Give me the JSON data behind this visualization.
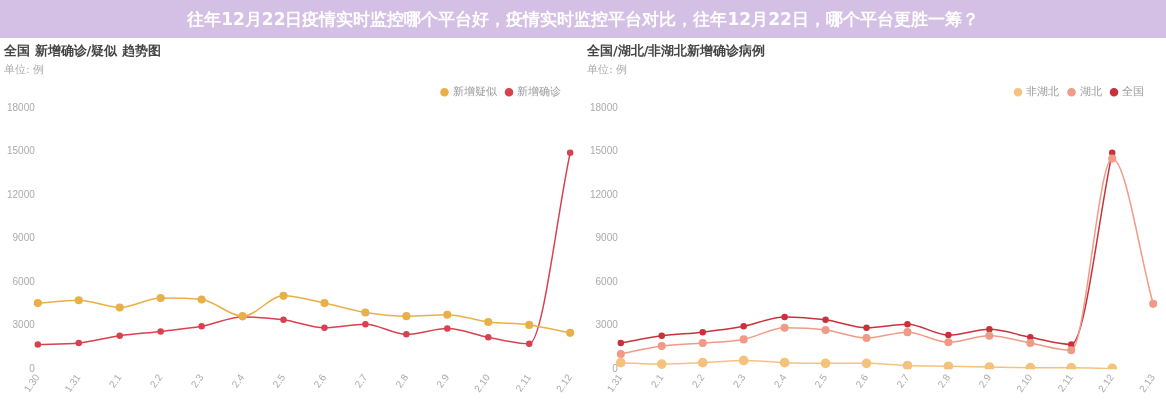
{
  "chart_data": [
    {
      "type": "other",
      "title": "往年12月22日疫情实时监控哪个平台好，疫情实时监控平台对比，往年12月22日，哪个平台更胜一筹？"
    },
    {
      "type": "line",
      "title": "全国 新增确诊/疑似 趋势图",
      "subtitle": "单位: 例",
      "categories": [
        "1.30",
        "1.31",
        "2.1",
        "2.2",
        "2.3",
        "2.4",
        "2.5",
        "2.6",
        "2.7",
        "2.8",
        "2.9",
        "2.10",
        "2.11",
        "2.12"
      ],
      "series": [
        {
          "name": "新增确诊",
          "color": "#d9414f",
          "values": [
            1700,
            1800,
            2300,
            2600,
            2950,
            3600,
            3400,
            2850,
            3100,
            2400,
            2800,
            2200,
            1750,
            14900
          ]
        },
        {
          "name": "新增疑似",
          "color": "#e8b04a",
          "values": [
            4550,
            4750,
            4250,
            4900,
            4800,
            3650,
            5050,
            4550,
            3900,
            3650,
            3750,
            3250,
            3050,
            2500
          ]
        }
      ],
      "ylim": [
        0,
        18000
      ],
      "yticks": [
        0,
        3000,
        6000,
        9000,
        12000,
        15000,
        18000
      ],
      "grid": false,
      "legend": "top right",
      "marker": "circle",
      "line_style": "solid"
    },
    {
      "type": "line",
      "title": "全国/湖北/非湖北新增确诊病例",
      "subtitle": "单位: 例",
      "categories": [
        "1.31",
        "2.1",
        "2.2",
        "2.3",
        "2.4",
        "2.5",
        "2.6",
        "2.7",
        "2.8",
        "2.9",
        "2.10",
        "2.11",
        "2.12",
        "2.13"
      ],
      "series": [
        {
          "name": "全国",
          "color": "#c8323c",
          "values": [
            1800,
            2300,
            2550,
            2950,
            3600,
            3400,
            2850,
            3100,
            2350,
            2750,
            2200,
            1700,
            14900,
            null
          ]
        },
        {
          "name": "湖北",
          "color": "#f09a88",
          "values": [
            1050,
            1600,
            1800,
            2050,
            2850,
            2700,
            2150,
            2550,
            1850,
            2300,
            1800,
            1300,
            14500,
            4500
          ]
        },
        {
          "name": "非湖北",
          "color": "#f5c27e",
          "values": [
            450,
            350,
            450,
            600,
            450,
            400,
            400,
            250,
            200,
            150,
            100,
            100,
            50,
            null
          ]
        }
      ],
      "ylim": [
        0,
        18000
      ],
      "yticks": [
        0,
        3000,
        6000,
        9000,
        12000,
        15000,
        18000
      ],
      "grid": false,
      "legend": "top right",
      "marker": "circle",
      "line_style": "solid"
    }
  ]
}
